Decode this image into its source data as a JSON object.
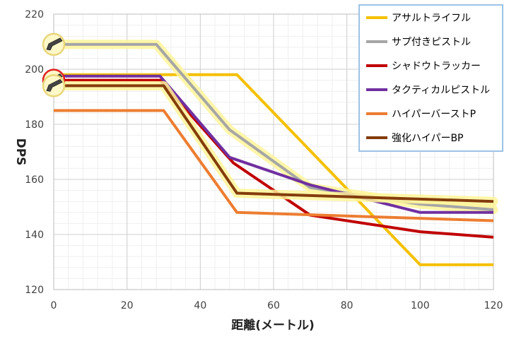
{
  "chart_data": {
    "type": "line",
    "xlabel": "距離(メートル)",
    "ylabel": "DPS",
    "xlim": [
      0,
      120
    ],
    "ylim": [
      120,
      220
    ],
    "xticks": [
      0,
      20,
      40,
      60,
      80,
      100,
      120
    ],
    "yticks": [
      120,
      140,
      160,
      180,
      200,
      220
    ],
    "grid": true,
    "minor_grid": true,
    "legend_position": "top-right",
    "series": [
      {
        "name": "アサルトライフル",
        "color": "#F5C000",
        "highlight": false,
        "x": [
          0,
          50,
          100,
          120
        ],
        "y": [
          198,
          198,
          129,
          129
        ]
      },
      {
        "name": "サプ付きピストル",
        "color": "#A6A6A6",
        "highlight": true,
        "x": [
          0,
          28,
          48,
          70,
          100,
          120
        ],
        "y": [
          209,
          209,
          178,
          157,
          151,
          149
        ]
      },
      {
        "name": "シャドウトラッカー",
        "color": "#C00000",
        "highlight": false,
        "x": [
          0,
          29,
          49,
          70,
          100,
          120
        ],
        "y": [
          196,
          196,
          166,
          147,
          141,
          139
        ]
      },
      {
        "name": "タクティカルピストル",
        "color": "#7030A0",
        "highlight": false,
        "x": [
          0,
          29,
          48,
          70,
          100,
          120
        ],
        "y": [
          197.5,
          197.5,
          168,
          158,
          148,
          148
        ]
      },
      {
        "name": "ハイパーバーストP",
        "color": "#ED7D31",
        "highlight": false,
        "x": [
          0,
          30,
          50,
          120
        ],
        "y": [
          185,
          185,
          148,
          145
        ]
      },
      {
        "name": "強化ハイパーBP",
        "color": "#843C0C",
        "highlight": true,
        "x": [
          0,
          30,
          50,
          120
        ],
        "y": [
          194,
          194,
          155,
          152
        ]
      }
    ],
    "markers": [
      {
        "icon": "pistol-icon",
        "x": 0,
        "y": 209,
        "ring": "#E8D67A"
      },
      {
        "icon": "pistol-icon",
        "x": 0,
        "y": 196,
        "ring": "#E02020"
      },
      {
        "icon": "pistol-icon",
        "x": 0,
        "y": 194,
        "ring": "#E8D67A"
      }
    ]
  }
}
